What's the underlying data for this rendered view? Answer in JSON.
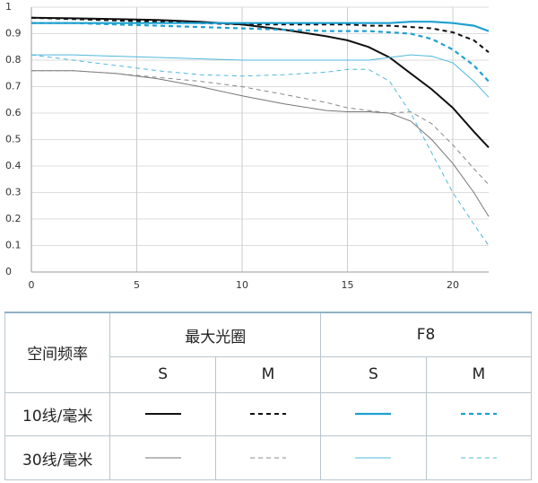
{
  "chart_data": {
    "type": "line",
    "x": [
      0,
      2,
      4,
      6,
      8,
      10,
      12,
      14,
      15,
      16,
      17,
      18,
      19,
      20,
      21,
      21.7
    ],
    "xlim": [
      0,
      21.7
    ],
    "xticks": [
      0,
      5,
      10,
      15,
      20
    ],
    "ylim": [
      0,
      1
    ],
    "yticks": [
      0,
      0.1,
      0.2,
      0.3,
      0.4,
      0.5,
      0.6,
      0.7,
      0.8,
      0.9,
      1
    ],
    "grid": true,
    "series": [
      {
        "color": "#111111",
        "dashed": false,
        "linewidth": 2,
        "values": [
          0.96,
          0.958,
          0.955,
          0.952,
          0.945,
          0.935,
          0.915,
          0.89,
          0.875,
          0.85,
          0.81,
          0.75,
          0.69,
          0.62,
          0.53,
          0.47
        ]
      },
      {
        "color": "#111111",
        "dashed": true,
        "linewidth": 2,
        "values": [
          0.96,
          0.955,
          0.95,
          0.945,
          0.94,
          0.935,
          0.935,
          0.935,
          0.935,
          0.93,
          0.93,
          0.925,
          0.92,
          0.905,
          0.875,
          0.83
        ]
      },
      {
        "color": "#1ea0d0",
        "dashed": false,
        "linewidth": 2.2,
        "values": [
          0.94,
          0.94,
          0.94,
          0.94,
          0.94,
          0.94,
          0.94,
          0.94,
          0.94,
          0.94,
          0.94,
          0.945,
          0.945,
          0.94,
          0.93,
          0.91
        ]
      },
      {
        "color": "#1ea0d0",
        "dashed": true,
        "linewidth": 2.2,
        "values": [
          0.94,
          0.94,
          0.935,
          0.93,
          0.925,
          0.92,
          0.915,
          0.91,
          0.91,
          0.91,
          0.905,
          0.9,
          0.88,
          0.84,
          0.78,
          0.72
        ]
      },
      {
        "color": "#777777",
        "dashed": false,
        "linewidth": 1,
        "values": [
          0.76,
          0.76,
          0.75,
          0.73,
          0.7,
          0.665,
          0.635,
          0.61,
          0.605,
          0.605,
          0.6,
          0.57,
          0.5,
          0.41,
          0.3,
          0.21
        ]
      },
      {
        "color": "#888888",
        "dashed": true,
        "linewidth": 1,
        "values": [
          0.76,
          0.76,
          0.75,
          0.735,
          0.72,
          0.7,
          0.67,
          0.64,
          0.62,
          0.61,
          0.6,
          0.605,
          0.56,
          0.48,
          0.39,
          0.33
        ]
      },
      {
        "color": "#4fb8dc",
        "dashed": false,
        "linewidth": 1,
        "values": [
          0.82,
          0.82,
          0.815,
          0.81,
          0.805,
          0.8,
          0.8,
          0.8,
          0.8,
          0.8,
          0.81,
          0.82,
          0.815,
          0.79,
          0.72,
          0.66
        ]
      },
      {
        "color": "#4fb8dc",
        "dashed": true,
        "linewidth": 1,
        "values": [
          0.82,
          0.8,
          0.78,
          0.76,
          0.745,
          0.74,
          0.745,
          0.755,
          0.765,
          0.765,
          0.72,
          0.6,
          0.45,
          0.3,
          0.18,
          0.1
        ]
      }
    ]
  },
  "legend_table": {
    "header": "空间频率",
    "groups": [
      "最大光圈",
      "F8"
    ],
    "subheaders": [
      "S",
      "M",
      "S",
      "M"
    ],
    "rows": [
      "10线/毫米",
      "30线/毫米"
    ]
  }
}
